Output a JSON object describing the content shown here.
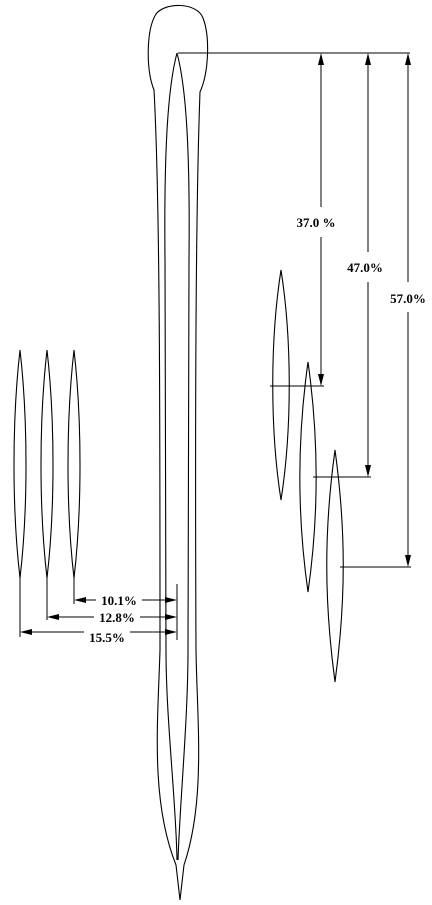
{
  "vertical_dimensions": [
    {
      "id": "dim-37",
      "label": "37.0 %"
    },
    {
      "id": "dim-47",
      "label": "47.0%"
    },
    {
      "id": "dim-57",
      "label": "57.0%"
    }
  ],
  "horizontal_dimensions": [
    {
      "id": "dim-10",
      "label": "10.1%"
    },
    {
      "id": "dim-12",
      "label": "12.8%"
    },
    {
      "id": "dim-15",
      "label": "15.5%"
    }
  ],
  "colors": {
    "stroke": "#000000",
    "background": "#ffffff"
  }
}
